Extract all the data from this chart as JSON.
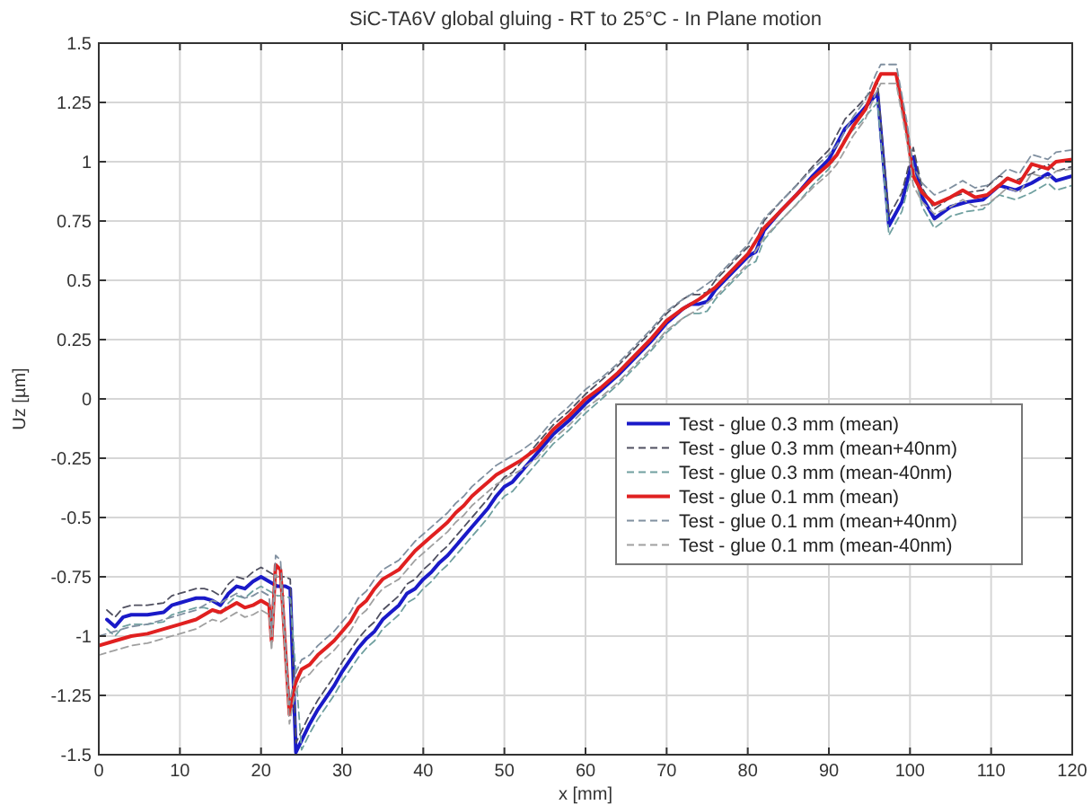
{
  "chart_data": {
    "type": "line",
    "title": "SiC-TA6V global gluing - RT to 25°C - In Plane motion",
    "xlabel": "x [mm]",
    "ylabel": "Uz [µm]",
    "xlim": [
      0,
      120
    ],
    "ylim": [
      -1.5,
      1.5
    ],
    "xticks": [
      0,
      10,
      20,
      30,
      40,
      50,
      60,
      70,
      80,
      90,
      100,
      110,
      120
    ],
    "yticks": [
      -1.5,
      -1.25,
      -1,
      -0.75,
      -0.5,
      -0.25,
      0,
      0.25,
      0.5,
      0.75,
      1,
      1.25,
      1.5
    ],
    "grid": true,
    "legend": "right",
    "series": [
      {
        "name": "Test - glue 0.3 mm (mean)",
        "color": "#1a1ac8",
        "line_style": "solid",
        "x": [
          1,
          2,
          3,
          4,
          6,
          8,
          9,
          10,
          11,
          12,
          13,
          14,
          15,
          16,
          17,
          18,
          19,
          20,
          21,
          22,
          23,
          23.6,
          24.3,
          25,
          26,
          27,
          28,
          29,
          30,
          31,
          32,
          33,
          34,
          35,
          36,
          37,
          38,
          39,
          40,
          41,
          42,
          43,
          44,
          45,
          46,
          47,
          48,
          49,
          50,
          51,
          52,
          53,
          54,
          56,
          58,
          60,
          62,
          64,
          66,
          68,
          70,
          72,
          73,
          74,
          75,
          76,
          78,
          80,
          81,
          82,
          84,
          86,
          88,
          90,
          92,
          94,
          96,
          97.4,
          99,
          100.4,
          101.5,
          103,
          105,
          107,
          109,
          111,
          113,
          115,
          117,
          118,
          120
        ],
        "values": [
          -0.93,
          -0.96,
          -0.92,
          -0.91,
          -0.91,
          -0.9,
          -0.87,
          -0.86,
          -0.85,
          -0.84,
          -0.84,
          -0.85,
          -0.87,
          -0.82,
          -0.79,
          -0.8,
          -0.77,
          -0.75,
          -0.77,
          -0.79,
          -0.79,
          -0.8,
          -1.49,
          -1.44,
          -1.37,
          -1.31,
          -1.26,
          -1.21,
          -1.15,
          -1.1,
          -1.05,
          -1.01,
          -0.98,
          -0.93,
          -0.9,
          -0.87,
          -0.82,
          -0.8,
          -0.76,
          -0.73,
          -0.69,
          -0.66,
          -0.62,
          -0.58,
          -0.54,
          -0.5,
          -0.46,
          -0.41,
          -0.37,
          -0.35,
          -0.31,
          -0.27,
          -0.23,
          -0.15,
          -0.09,
          -0.02,
          0.04,
          0.1,
          0.17,
          0.24,
          0.32,
          0.38,
          0.4,
          0.4,
          0.41,
          0.46,
          0.53,
          0.6,
          0.62,
          0.71,
          0.79,
          0.86,
          0.94,
          1.01,
          1.14,
          1.21,
          1.29,
          0.73,
          0.83,
          1.02,
          0.85,
          0.76,
          0.81,
          0.83,
          0.84,
          0.9,
          0.88,
          0.91,
          0.95,
          0.92,
          0.94
        ]
      },
      {
        "name": "Test - glue 0.3 mm (mean+40nm)",
        "color": "#505060",
        "line_style": "dashed",
        "x": [
          1,
          2,
          3,
          4,
          6,
          8,
          9,
          10,
          11,
          12,
          13,
          14,
          15,
          16,
          17,
          18,
          19,
          20,
          21,
          22,
          23,
          23.6,
          24.3,
          25,
          26,
          27,
          28,
          29,
          30,
          31,
          32,
          33,
          34,
          35,
          36,
          37,
          38,
          39,
          40,
          41,
          42,
          43,
          44,
          45,
          46,
          47,
          48,
          49,
          50,
          51,
          52,
          53,
          54,
          56,
          58,
          60,
          62,
          64,
          66,
          68,
          70,
          72,
          73,
          74,
          75,
          76,
          78,
          80,
          81,
          82,
          84,
          86,
          88,
          90,
          92,
          94,
          96,
          97.4,
          99,
          100.4,
          101.5,
          103,
          105,
          107,
          109,
          111,
          113,
          115,
          117,
          118,
          120
        ],
        "values": [
          -0.89,
          -0.92,
          -0.88,
          -0.87,
          -0.87,
          -0.86,
          -0.83,
          -0.82,
          -0.81,
          -0.8,
          -0.8,
          -0.81,
          -0.83,
          -0.78,
          -0.75,
          -0.76,
          -0.73,
          -0.71,
          -0.73,
          -0.75,
          -0.75,
          -0.76,
          -1.45,
          -1.4,
          -1.33,
          -1.27,
          -1.22,
          -1.17,
          -1.11,
          -1.06,
          -1.01,
          -0.97,
          -0.94,
          -0.89,
          -0.86,
          -0.83,
          -0.78,
          -0.76,
          -0.72,
          -0.69,
          -0.65,
          -0.62,
          -0.58,
          -0.54,
          -0.5,
          -0.46,
          -0.42,
          -0.37,
          -0.33,
          -0.31,
          -0.27,
          -0.23,
          -0.19,
          -0.11,
          -0.05,
          0.02,
          0.08,
          0.14,
          0.21,
          0.28,
          0.36,
          0.42,
          0.44,
          0.44,
          0.45,
          0.5,
          0.57,
          0.64,
          0.66,
          0.75,
          0.83,
          0.9,
          0.98,
          1.05,
          1.18,
          1.25,
          1.33,
          0.77,
          0.87,
          1.06,
          0.89,
          0.8,
          0.85,
          0.87,
          0.88,
          0.94,
          0.92,
          0.95,
          0.99,
          0.96,
          0.98
        ]
      },
      {
        "name": "Test - glue 0.3 mm (mean-40nm)",
        "color": "#70a0a0",
        "line_style": "dashed",
        "x": [
          1,
          2,
          3,
          4,
          6,
          8,
          9,
          10,
          11,
          12,
          13,
          14,
          15,
          16,
          17,
          18,
          19,
          20,
          21,
          22,
          23,
          23.6,
          25,
          26,
          27,
          28,
          29,
          30,
          31,
          32,
          33,
          34,
          35,
          36,
          37,
          38,
          39,
          40,
          41,
          42,
          43,
          44,
          45,
          46,
          47,
          48,
          49,
          50,
          51,
          52,
          53,
          54,
          56,
          58,
          60,
          62,
          64,
          66,
          68,
          70,
          72,
          73,
          74,
          75,
          76,
          78,
          80,
          81,
          82,
          84,
          86,
          88,
          90,
          92,
          94,
          96,
          97.4,
          99,
          100.4,
          101.5,
          103,
          105,
          107,
          109,
          111,
          113,
          115,
          117,
          118,
          120
        ],
        "values": [
          -0.97,
          -1.0,
          -0.96,
          -0.95,
          -0.95,
          -0.94,
          -0.91,
          -0.9,
          -0.89,
          -0.88,
          -0.88,
          -0.89,
          -0.91,
          -0.86,
          -0.83,
          -0.84,
          -0.81,
          -0.79,
          -0.81,
          -0.83,
          -0.83,
          -0.84,
          -1.48,
          -1.41,
          -1.35,
          -1.3,
          -1.25,
          -1.19,
          -1.14,
          -1.09,
          -1.05,
          -1.02,
          -0.97,
          -0.94,
          -0.91,
          -0.86,
          -0.84,
          -0.8,
          -0.77,
          -0.73,
          -0.7,
          -0.66,
          -0.62,
          -0.58,
          -0.54,
          -0.5,
          -0.45,
          -0.41,
          -0.39,
          -0.35,
          -0.31,
          -0.27,
          -0.19,
          -0.13,
          -0.06,
          0.0,
          0.06,
          0.13,
          0.2,
          0.28,
          0.34,
          0.36,
          0.36,
          0.37,
          0.42,
          0.49,
          0.56,
          0.58,
          0.67,
          0.75,
          0.82,
          0.9,
          0.97,
          1.1,
          1.17,
          1.25,
          0.69,
          0.79,
          0.98,
          0.81,
          0.72,
          0.77,
          0.79,
          0.8,
          0.86,
          0.84,
          0.87,
          0.91,
          0.88,
          0.9
        ]
      },
      {
        "name": "Test - glue 0.1 mm (mean)",
        "color": "#e02020",
        "line_style": "solid",
        "x": [
          0,
          2,
          4,
          6,
          8,
          10,
          12,
          13,
          14,
          15,
          16,
          17,
          18,
          19,
          20,
          21,
          21.3,
          21.8,
          22.4,
          23.5,
          24.2,
          25,
          26,
          27,
          28,
          29,
          30,
          31,
          32,
          33,
          34,
          35,
          36,
          37,
          38,
          39,
          40,
          41,
          42,
          43,
          44,
          45,
          46,
          47,
          48,
          49,
          50,
          52,
          54,
          56,
          58,
          60,
          62,
          64,
          66,
          68,
          70,
          72,
          74,
          76,
          78,
          80,
          82,
          84,
          86,
          88,
          90,
          91,
          93,
          94.5,
          95.8,
          96.4,
          98.3,
          99.6,
          100.4,
          101.5,
          103,
          105,
          106.5,
          108,
          109.5,
          111,
          112,
          113.5,
          115,
          117,
          118,
          120
        ],
        "values": [
          -1.04,
          -1.02,
          -1.0,
          -0.99,
          -0.97,
          -0.95,
          -0.93,
          -0.91,
          -0.89,
          -0.9,
          -0.88,
          -0.86,
          -0.88,
          -0.87,
          -0.85,
          -0.87,
          -1.02,
          -0.7,
          -0.72,
          -1.33,
          -1.2,
          -1.14,
          -1.12,
          -1.08,
          -1.05,
          -1.02,
          -0.98,
          -0.94,
          -0.88,
          -0.85,
          -0.8,
          -0.76,
          -0.74,
          -0.72,
          -0.68,
          -0.64,
          -0.61,
          -0.58,
          -0.55,
          -0.52,
          -0.48,
          -0.45,
          -0.41,
          -0.38,
          -0.35,
          -0.32,
          -0.3,
          -0.26,
          -0.21,
          -0.13,
          -0.07,
          0.0,
          0.05,
          0.11,
          0.18,
          0.25,
          0.33,
          0.38,
          0.42,
          0.47,
          0.54,
          0.61,
          0.72,
          0.79,
          0.86,
          0.93,
          0.99,
          1.03,
          1.15,
          1.22,
          1.33,
          1.37,
          1.37,
          1.13,
          0.94,
          0.87,
          0.82,
          0.85,
          0.88,
          0.85,
          0.86,
          0.9,
          0.93,
          0.91,
          0.99,
          0.97,
          1.0,
          1.01
        ]
      },
      {
        "name": "Test - glue 0.1 mm (mean+40nm)",
        "color": "#8090a0",
        "line_style": "dashed",
        "x": [
          0,
          2,
          4,
          6,
          8,
          10,
          12,
          13,
          14,
          15,
          16,
          17,
          18,
          19,
          20,
          21,
          21.3,
          21.8,
          22.4,
          23.5,
          24.2,
          25,
          26,
          27,
          28,
          29,
          30,
          31,
          32,
          33,
          34,
          35,
          36,
          37,
          38,
          39,
          40,
          41,
          42,
          43,
          44,
          45,
          46,
          47,
          48,
          49,
          50,
          52,
          54,
          56,
          58,
          60,
          62,
          64,
          66,
          68,
          70,
          72,
          74,
          76,
          78,
          80,
          82,
          84,
          86,
          88,
          90,
          91,
          93,
          94.5,
          95.8,
          96.4,
          98.3,
          99.6,
          100.4,
          101.5,
          103,
          105,
          106.5,
          108,
          109.5,
          111,
          112,
          113.5,
          115,
          117,
          118,
          120
        ],
        "values": [
          -1.0,
          -0.98,
          -0.96,
          -0.95,
          -0.93,
          -0.91,
          -0.89,
          -0.87,
          -0.85,
          -0.86,
          -0.84,
          -0.82,
          -0.84,
          -0.83,
          -0.81,
          -0.83,
          -0.98,
          -0.66,
          -0.68,
          -1.29,
          -1.16,
          -1.1,
          -1.08,
          -1.04,
          -1.01,
          -0.98,
          -0.94,
          -0.9,
          -0.84,
          -0.81,
          -0.76,
          -0.72,
          -0.7,
          -0.68,
          -0.64,
          -0.6,
          -0.57,
          -0.54,
          -0.51,
          -0.48,
          -0.44,
          -0.41,
          -0.37,
          -0.34,
          -0.31,
          -0.28,
          -0.26,
          -0.22,
          -0.17,
          -0.09,
          -0.03,
          0.04,
          0.09,
          0.15,
          0.22,
          0.29,
          0.37,
          0.42,
          0.46,
          0.51,
          0.58,
          0.65,
          0.76,
          0.83,
          0.9,
          0.97,
          1.03,
          1.07,
          1.19,
          1.26,
          1.37,
          1.41,
          1.41,
          1.17,
          0.98,
          0.91,
          0.86,
          0.89,
          0.92,
          0.89,
          0.9,
          0.94,
          0.97,
          0.95,
          1.03,
          1.01,
          1.04,
          1.05
        ]
      },
      {
        "name": "Test - glue 0.1 mm (mean-40nm)",
        "color": "#a0a0a0",
        "line_style": "dashed",
        "x": [
          0,
          2,
          4,
          6,
          8,
          10,
          12,
          13,
          14,
          15,
          16,
          17,
          18,
          19,
          20,
          21,
          21.3,
          21.8,
          22.4,
          23.5,
          24.2,
          25,
          26,
          27,
          28,
          29,
          30,
          31,
          32,
          33,
          34,
          35,
          36,
          37,
          38,
          39,
          40,
          41,
          42,
          43,
          44,
          45,
          46,
          47,
          48,
          49,
          50,
          52,
          54,
          56,
          58,
          60,
          62,
          64,
          66,
          68,
          70,
          72,
          74,
          76,
          78,
          80,
          82,
          84,
          86,
          88,
          90,
          91,
          93,
          94.5,
          95.8,
          96.4,
          98.3,
          99.6,
          100.4,
          101.5,
          103,
          105,
          106.5,
          108,
          109.5,
          111,
          112,
          113.5,
          115,
          117,
          118,
          120
        ],
        "values": [
          -1.08,
          -1.06,
          -1.04,
          -1.03,
          -1.01,
          -0.99,
          -0.97,
          -0.95,
          -0.93,
          -0.94,
          -0.92,
          -0.9,
          -0.92,
          -0.91,
          -0.89,
          -0.91,
          -1.06,
          -0.74,
          -0.76,
          -1.37,
          -1.24,
          -1.18,
          -1.16,
          -1.12,
          -1.09,
          -1.06,
          -1.02,
          -0.98,
          -0.92,
          -0.89,
          -0.84,
          -0.8,
          -0.78,
          -0.76,
          -0.72,
          -0.68,
          -0.65,
          -0.62,
          -0.59,
          -0.56,
          -0.52,
          -0.49,
          -0.45,
          -0.42,
          -0.39,
          -0.36,
          -0.34,
          -0.3,
          -0.25,
          -0.17,
          -0.11,
          -0.04,
          0.01,
          0.07,
          0.14,
          0.21,
          0.29,
          0.34,
          0.38,
          0.43,
          0.5,
          0.57,
          0.68,
          0.75,
          0.82,
          0.89,
          0.95,
          0.99,
          1.11,
          1.18,
          1.29,
          1.33,
          1.33,
          1.09,
          0.9,
          0.83,
          0.78,
          0.81,
          0.84,
          0.81,
          0.82,
          0.86,
          0.89,
          0.87,
          0.95,
          0.93,
          0.96,
          0.97
        ]
      }
    ]
  }
}
